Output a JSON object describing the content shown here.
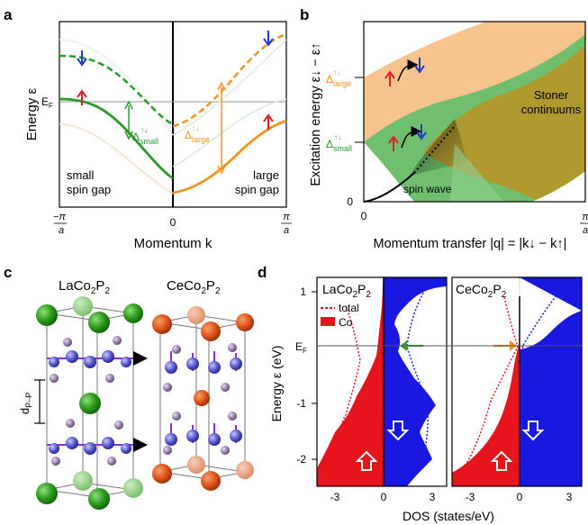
{
  "panels": {
    "a": {
      "letter": "a",
      "ylabel": "Energy ε",
      "xlabel": "Momentum k",
      "xticks": [
        "−π/a",
        "0",
        "π/a"
      ],
      "ef_label": "E_F",
      "delta_small": "Δsmall↑↓",
      "delta_large": "Δlarge↑↓",
      "left_note_1": "small",
      "left_note_2": "spin gap",
      "right_note_1": "large",
      "right_note_2": "spin gap",
      "colors": {
        "small": "#2a9a2a",
        "large": "#f0941e",
        "down": "#1a3ccc",
        "up": "#e02020"
      }
    },
    "b": {
      "letter": "b",
      "ylabel": "Excitation energy ε↓ − ε↑",
      "xlabel": "Momentum transfer |q| = |k↓ − k↑|",
      "xticks": [
        "0",
        "π/a"
      ],
      "ytick_zero": "0",
      "delta_large": "Δlarge↑↓",
      "delta_small": "Δsmall↑↓",
      "stoner_1": "Stoner",
      "stoner_2": "continuums",
      "spin_wave": "spin wave",
      "colors": {
        "orange": "#f8c48e",
        "green": "#6fbf6f",
        "olive": "#b09a30"
      }
    },
    "c": {
      "letter": "c",
      "title_left": "LaCo2P2",
      "title_right": "CeCo2P2",
      "dpp_label": "dP–P",
      "colors": {
        "la": "#2e9a1c",
        "ce": "#e05a1e",
        "co": "#5a5ad0",
        "p": "#9a80b0",
        "arrow": "#8a2be2"
      }
    },
    "d": {
      "letter": "d",
      "ylabel": "Energy ε (eV)",
      "xlabel": "DOS (states/eV)",
      "ef_label": "E_F",
      "title_left": "LaCo2P2",
      "title_right": "CeCo2P2",
      "legend_total": "total",
      "legend_co": "Co",
      "yticks": [
        "1",
        "0",
        "-1",
        "-2"
      ],
      "xticks_left": [
        "-3",
        "0",
        "3"
      ],
      "xticks_right": [
        "-3",
        "0",
        "3"
      ],
      "colors": {
        "up": "#e8141c",
        "down": "#1818e0",
        "green_arrow": "#3aa03a",
        "orange_arrow": "#f0902a"
      }
    }
  }
}
